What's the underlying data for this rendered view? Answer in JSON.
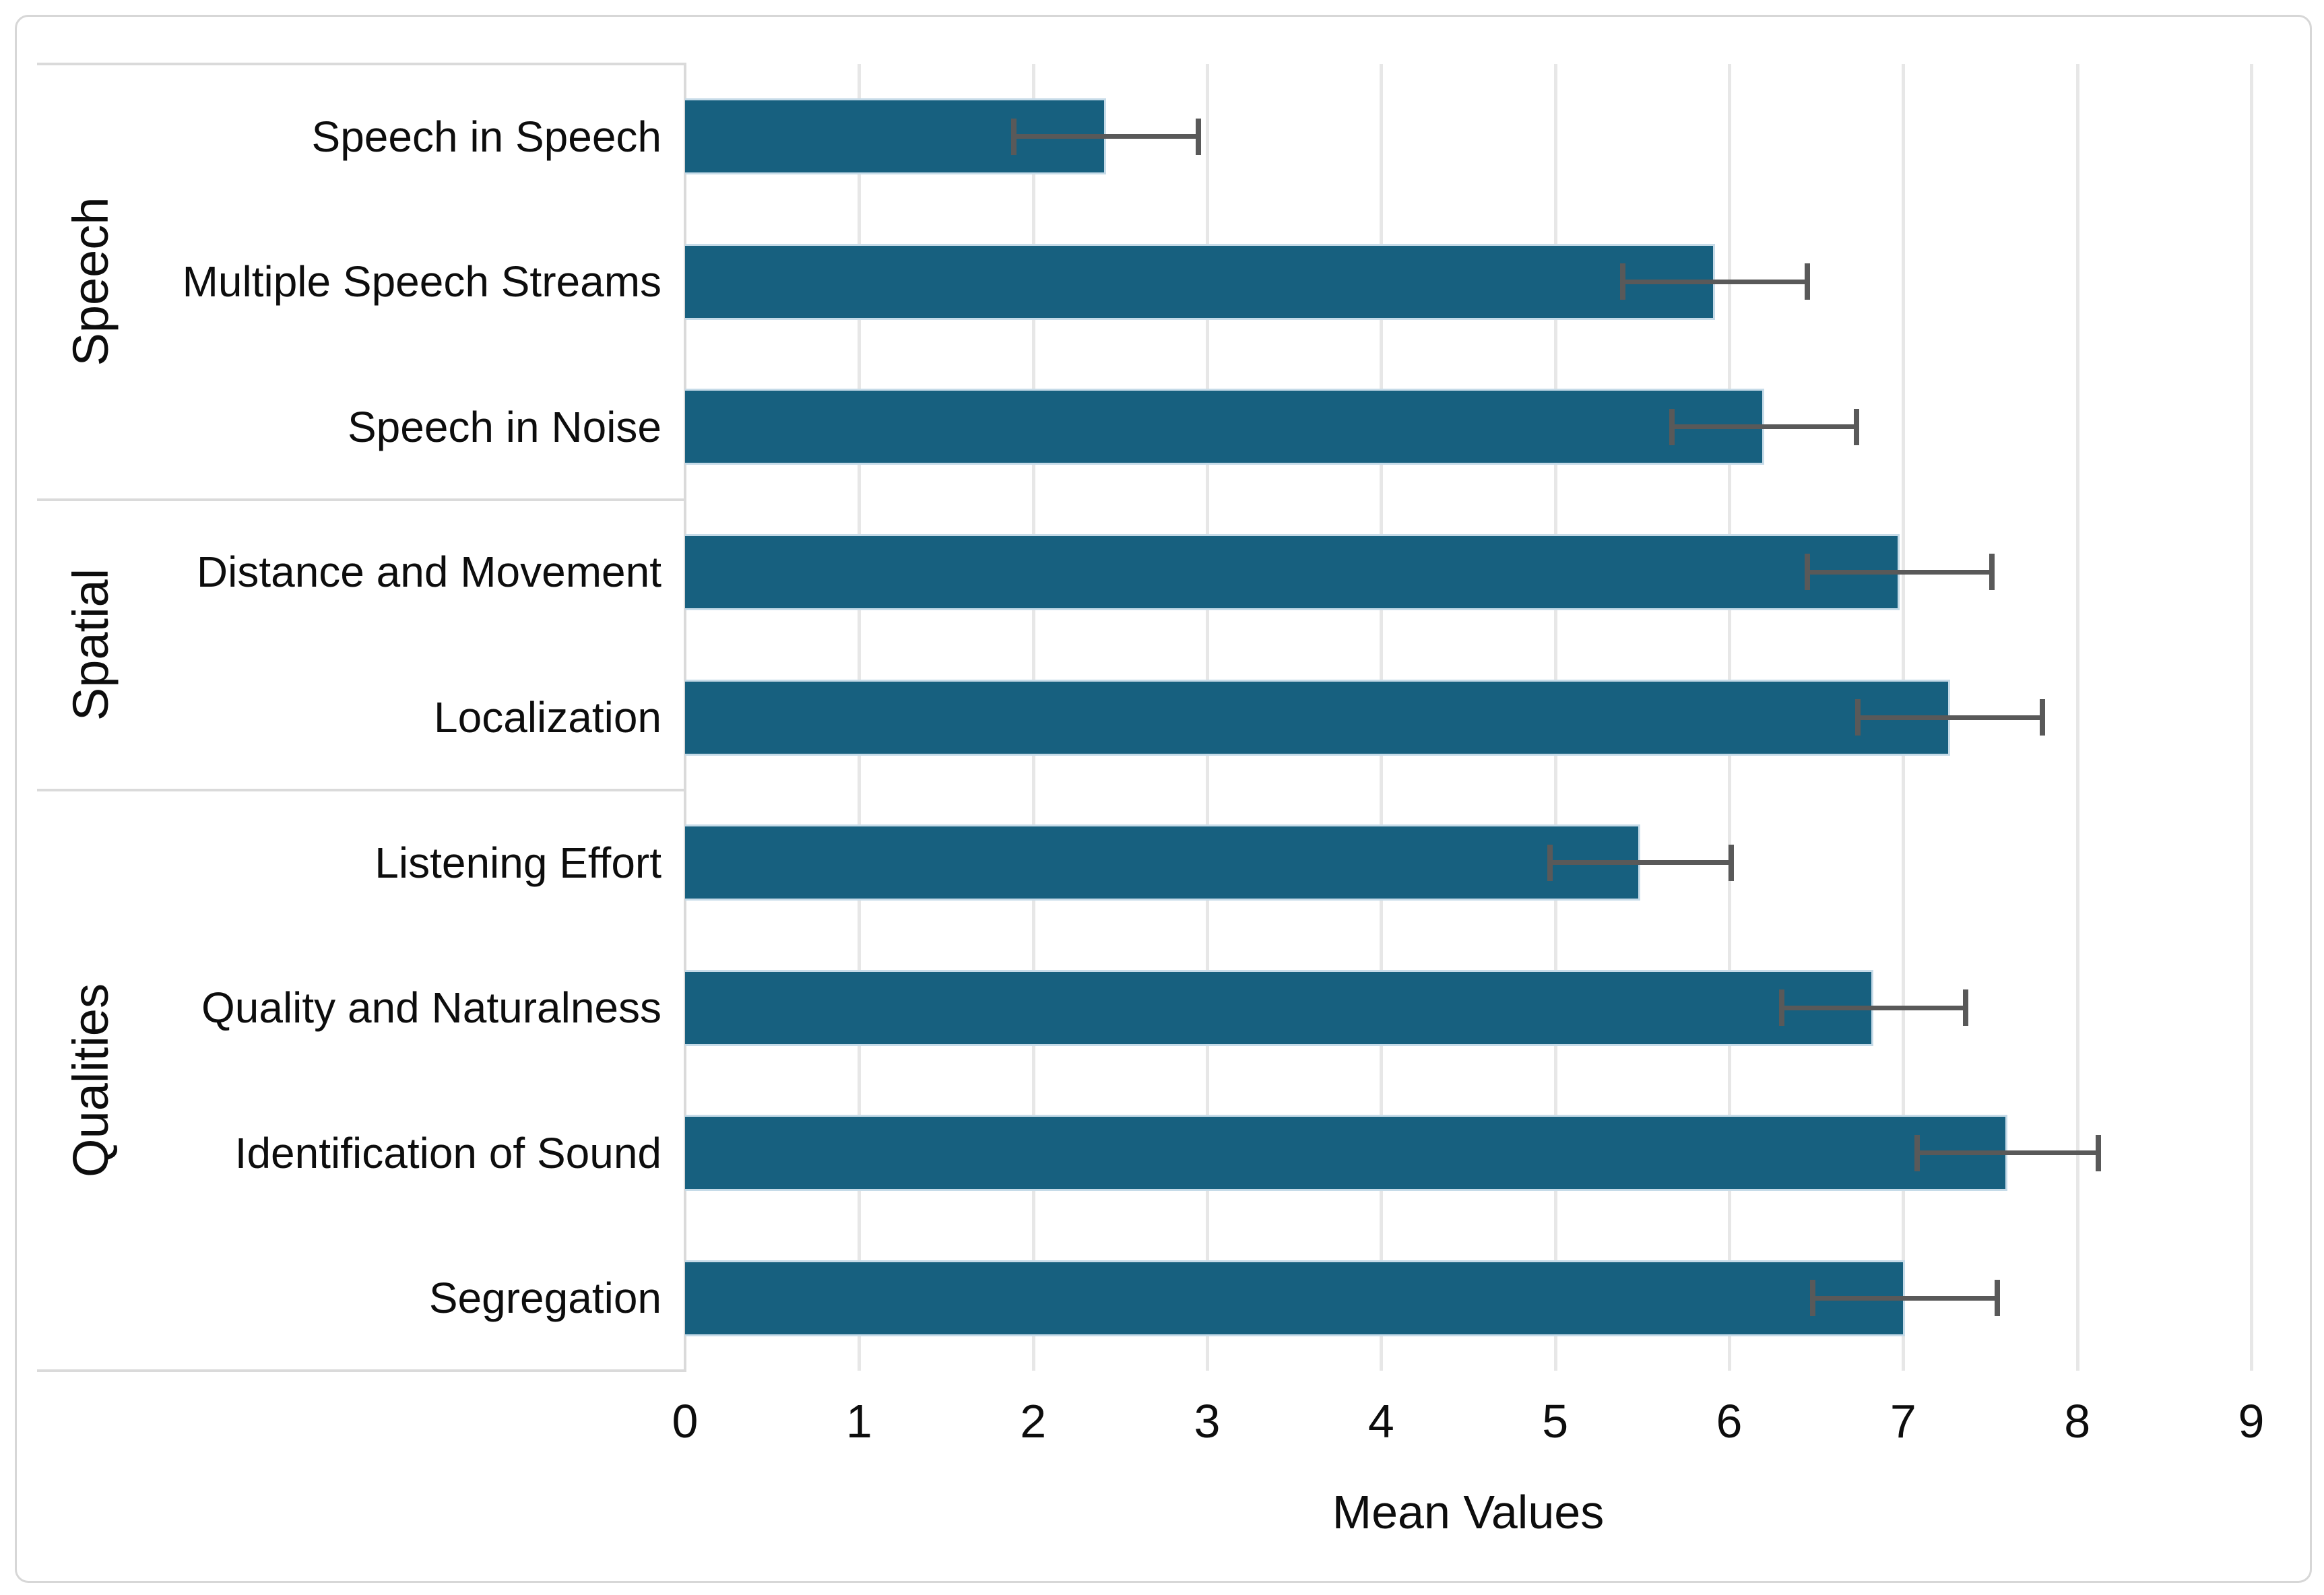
{
  "chart_data": {
    "type": "bar",
    "orientation": "horizontal",
    "title": "",
    "xlabel": "Mean Values",
    "xlim": [
      0,
      9
    ],
    "x_ticks": [
      "0",
      "1",
      "2",
      "3",
      "4",
      "5",
      "6",
      "7",
      "8",
      "9"
    ],
    "grid": true,
    "legend": false,
    "groups": [
      {
        "label": "Speech",
        "categories": [
          "Speech in Speech",
          "Multiple Speech Streams",
          "Speech in Noise"
        ],
        "values": [
          2.42,
          5.92,
          6.2
        ],
        "errors": [
          0.53,
          0.53,
          0.53
        ]
      },
      {
        "label": "Spatial",
        "categories": [
          "Distance and Movement",
          "Localization"
        ],
        "values": [
          6.98,
          7.27
        ],
        "errors": [
          0.53,
          0.53
        ]
      },
      {
        "label": "Qualities",
        "categories": [
          "Listening Effort",
          "Quality and Naturalness",
          "Identification of Sound",
          "Segregation"
        ],
        "values": [
          5.49,
          6.83,
          7.6,
          7.01
        ],
        "errors": [
          0.52,
          0.53,
          0.52,
          0.53
        ]
      }
    ],
    "colors": {
      "bar_fill": "#17607F",
      "bar_edge": "#c6dbe8",
      "error_bar": "#595959",
      "gridline": "#e7e7e7",
      "panel_border": "#dadada",
      "text": "#0d0d0d"
    }
  }
}
